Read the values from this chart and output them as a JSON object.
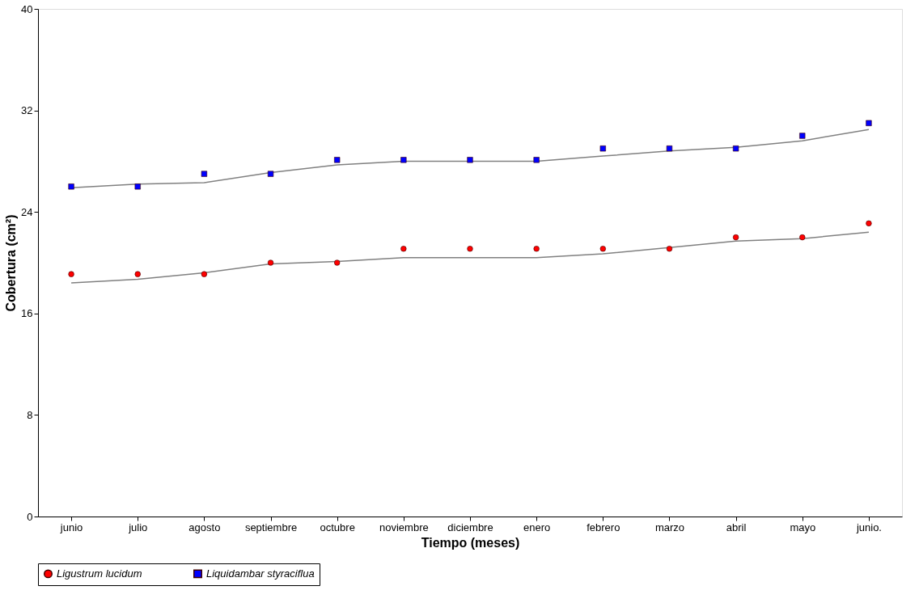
{
  "chart_data": {
    "type": "scatter",
    "xlabel": "Tiempo (meses)",
    "ylabel": "Cobertura (cm²)",
    "categories": [
      "junio",
      "julio",
      "agosto",
      "septiembre",
      "octubre",
      "noviembre",
      "diciembre",
      "enero",
      "febrero",
      "marzo",
      "abril",
      "mayo",
      "junio."
    ],
    "series": [
      {
        "name": "Ligustrum lucidum",
        "marker": "circle",
        "color": "#ff0000",
        "values": [
          19.1,
          19.1,
          19.1,
          20.0,
          20.0,
          21.1,
          21.1,
          21.1,
          21.1,
          21.1,
          22.0,
          22.0,
          23.1
        ]
      },
      {
        "name": "Liquidambar styraciflua",
        "marker": "square",
        "color": "#0000ff",
        "values": [
          26.0,
          26.0,
          27.0,
          27.0,
          28.1,
          28.1,
          28.1,
          28.1,
          29.0,
          29.0,
          29.0,
          30.0,
          31.0
        ]
      },
      {
        "type": "line",
        "marker": "none",
        "color": "#808080",
        "values": [
          18.4,
          18.7,
          19.2,
          19.9,
          20.1,
          20.4,
          20.4,
          20.4,
          20.7,
          21.2,
          21.7,
          21.9,
          22.4
        ]
      },
      {
        "type": "line",
        "marker": "none",
        "color": "#808080",
        "values": [
          25.9,
          26.2,
          26.3,
          27.1,
          27.7,
          28.0,
          28.0,
          28.0,
          28.4,
          28.8,
          29.1,
          29.6,
          30.5
        ]
      }
    ],
    "ylim": [
      0,
      40
    ],
    "yticks": [
      0,
      8,
      16,
      24,
      32,
      40
    ],
    "grid": false,
    "legend": "bottom"
  }
}
